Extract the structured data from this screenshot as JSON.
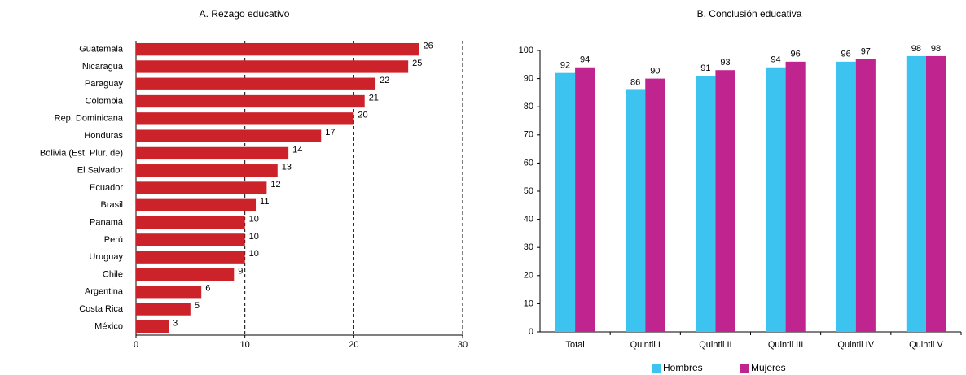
{
  "chart_data": [
    {
      "type": "hbar",
      "title": "A. Rezago educativo",
      "categories": [
        "Guatemala",
        "Nicaragua",
        "Paraguay",
        "Colombia",
        "Rep. Dominicana",
        "Honduras",
        "Bolivia (Est. Plur. de)",
        "El Salvador",
        "Ecuador",
        "Brasil",
        "Panamá",
        "Perú",
        "Uruguay",
        "Chile",
        "Argentina",
        "Costa Rica",
        "México"
      ],
      "values": [
        26,
        25,
        22,
        21,
        20,
        17,
        14,
        13,
        12,
        11,
        10,
        10,
        10,
        9,
        6,
        5,
        3
      ],
      "color": "#cc2229",
      "xlim": [
        0,
        30
      ],
      "xticks": [
        0,
        10,
        20,
        30
      ],
      "grid": true
    },
    {
      "type": "grouped-bar",
      "title": "B. Conclusión educativa",
      "categories": [
        "Total",
        "Quintil I",
        "Quintil II",
        "Quintil III",
        "Quintil IV",
        "Quintil V"
      ],
      "series": [
        {
          "name": "Hombres",
          "color": "#3dc3ef",
          "values": [
            92,
            86,
            91,
            94,
            96,
            98
          ]
        },
        {
          "name": "Mujeres",
          "color": "#c0248e",
          "values": [
            94,
            90,
            93,
            96,
            97,
            98
          ]
        }
      ],
      "ylim": [
        0,
        100
      ],
      "yticks": [
        0,
        10,
        20,
        30,
        40,
        50,
        60,
        70,
        80,
        90,
        100
      ],
      "legend": "bottom"
    }
  ]
}
